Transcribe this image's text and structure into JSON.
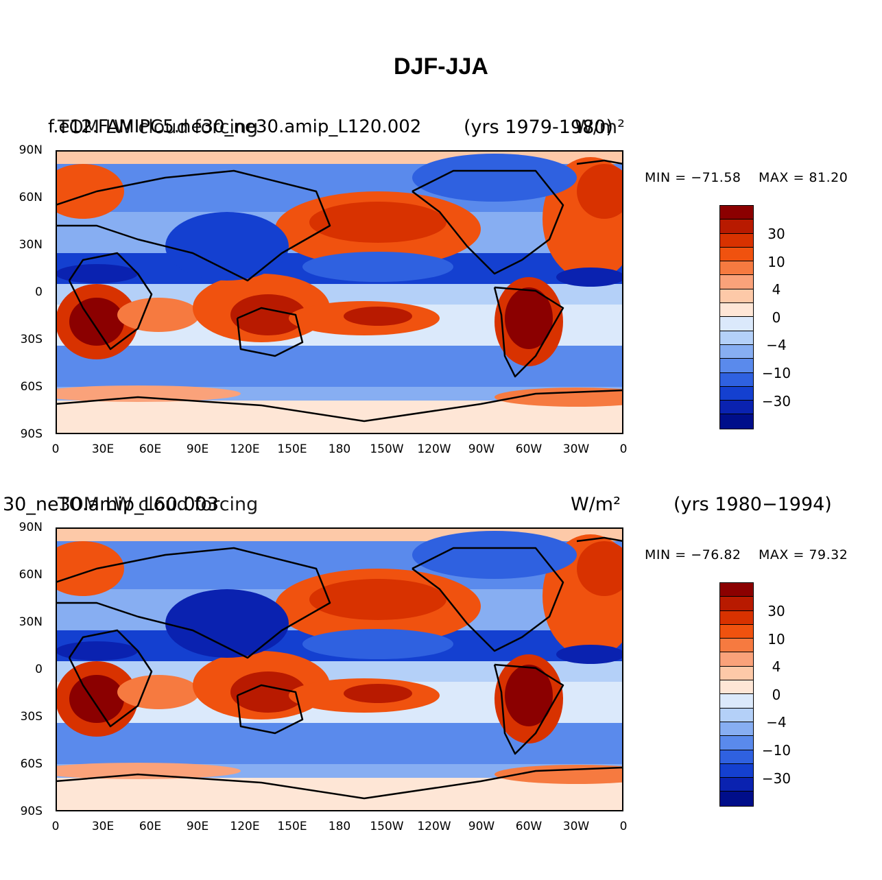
{
  "figure_title": "DJF-JJA",
  "panels": [
    {
      "left_title": "f.e12.FAMIPC5.ne30_ne30.amip_L120.002",
      "left_subtitle": "TOM LW cloud forcing",
      "right_title": "(yrs 1979-1980)",
      "units": "W/m²",
      "min_label": "MIN = −71.58",
      "max_label": "MAX =  81.20",
      "min": -71.58,
      "max": 81.2
    },
    {
      "left_title": "30_ne30.amip_L60.003",
      "left_subtitle": "TOM LW cloud forcing",
      "right_title": "(yrs 1980−1994)",
      "units": "W/m²",
      "min_label": "MIN = −76.82",
      "max_label": "MAX =  79.32",
      "min": -76.82,
      "max": 79.32
    }
  ],
  "axes": {
    "y_ticks": [
      "90N",
      "60N",
      "30N",
      "0",
      "30S",
      "60S",
      "90S"
    ],
    "x_ticks": [
      "0",
      "30E",
      "60E",
      "90E",
      "120E",
      "150E",
      "180",
      "150W",
      "120W",
      "90W",
      "60W",
      "30W",
      "0"
    ]
  },
  "colorbar": {
    "labels": [
      "30",
      "10",
      "4",
      "0",
      "−4",
      "−10",
      "−30"
    ],
    "colors": [
      "#8b0000",
      "#b81a00",
      "#d83200",
      "#f0520f",
      "#f67a40",
      "#faa27a",
      "#fdc9a8",
      "#fee6d6",
      "#dbe9fb",
      "#b4d0f8",
      "#87aef2",
      "#5a8aec",
      "#2f61e0",
      "#1440d0",
      "#0a22b0",
      "#000e8a"
    ]
  }
}
